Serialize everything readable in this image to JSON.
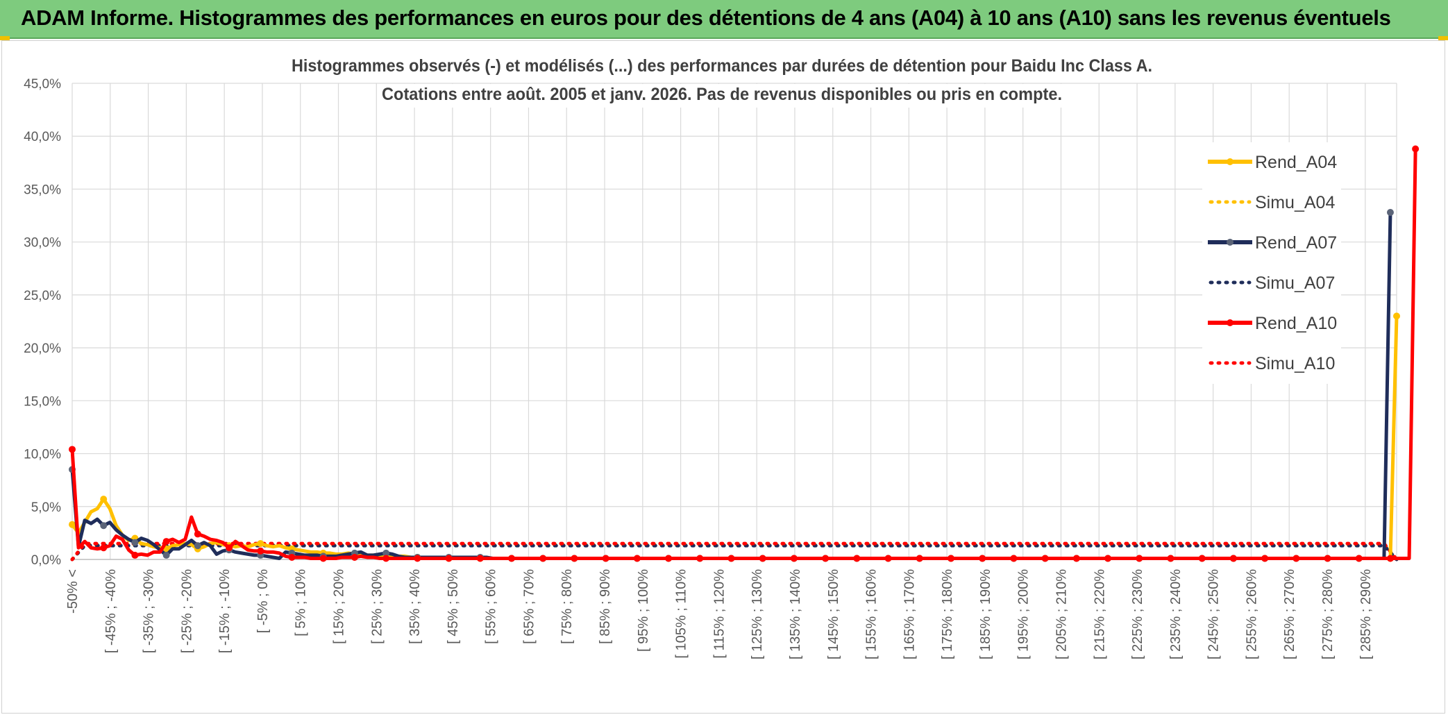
{
  "banner": {
    "title": "ADAM Informe. Histogrammes des performances en euros pour des détentions de 4 ans (A04) à 10 ans (A10) sans les revenus éventuels"
  },
  "colors": {
    "banner_bg": "#7ecb7e",
    "a04": "#ffc000",
    "a07": "#1f2d5a",
    "a07_marker": "#5b6478",
    "a10": "#ff0000",
    "grid": "#d9d9d9",
    "axis_text": "#595959",
    "title_text": "#404040"
  },
  "chart_data": {
    "type": "line",
    "title_line1": "Histogrammes observés (-) et modélisés (...) des performances par durées de détention pour Baidu Inc Class A.",
    "title_line2": "Cotations entre août. 2005 et janv. 2026. Pas de revenus disponibles ou pris en compte.",
    "ylim": [
      0,
      45
    ],
    "yticks": [
      "0,0%",
      "5,0%",
      "10,0%",
      "15,0%",
      "20,0%",
      "25,0%",
      "30,0%",
      "35,0%",
      "40,0%",
      "45,0%"
    ],
    "xtick_labels": [
      "-50% <",
      "[ -45% ; -40%",
      "[ -35% ; -30%",
      "[ -25% ; -20%",
      "[ -15% ; -10%",
      "[ -5% ; 0%",
      "[ 5% ; 10%",
      "[ 15% ; 20%",
      "[ 25% ; 30%",
      "[ 35% ; 40%",
      "[ 45% ; 50%",
      "[ 55% ; 60%",
      "[ 65% ; 70%",
      "[ 75% ; 80%",
      "[ 85% ; 90%",
      "[ 95% ; 100%",
      "[ 105% ; 110%",
      "[ 115% ; 120%",
      "[ 125% ; 130%",
      "[ 135% ; 140%",
      "[ 145% ; 150%",
      "[ 155% ; 160%",
      "[ 165% ; 170%",
      "[ 175% ; 180%",
      "[ 185% ; 190%",
      "[ 195% ; 200%",
      "[ 205% ; 210%",
      "[ 215% ; 220%",
      "[ 225% ; 230%",
      "[ 235% ; 240%",
      "[ 245% ; 250%",
      "[ 255% ; 260%",
      "[ 265% ; 270%",
      "[ 275% ; 280%",
      "[ 285% ; 290%"
    ],
    "legend_position": "right",
    "series": [
      {
        "name": "Rend_A04",
        "style": "solid",
        "color": "#ffc000",
        "values": [
          3.3,
          2.5,
          3.5,
          4.5,
          4.8,
          5.7,
          4.8,
          3.2,
          2.3,
          1.8,
          2.0,
          1.5,
          1.4,
          1.2,
          1.1,
          1.0,
          1.3,
          1.4,
          1.5,
          1.4,
          1.0,
          1.2,
          1.5,
          1.6,
          1.4,
          1.3,
          1.2,
          1.3,
          1.2,
          1.4,
          1.5,
          1.3,
          1.2,
          1.3,
          1.1,
          1.0,
          0.9,
          0.8,
          0.7,
          0.7,
          0.6,
          0.6,
          0.5,
          0.5,
          0.6,
          0.5,
          0.5,
          0.4,
          0.4,
          0.4,
          0.3,
          0.3,
          0.3,
          0.3,
          0.2,
          0.2,
          0.2,
          0.2,
          0.2,
          0.1,
          0.1,
          0.1,
          0.1,
          0.2,
          0.1,
          0.1,
          0.1,
          0.1,
          0.1,
          0.1,
          0.1,
          0.1,
          0.1,
          0.1,
          0.1,
          0.1,
          0.1,
          0.1,
          0.1,
          0.1,
          0.1,
          0.1,
          0.1,
          0.1,
          0.1,
          0.1,
          0.1,
          0.1,
          0.1,
          0.1,
          0.1,
          0.1,
          0.1,
          0.1,
          0.1,
          0.1,
          0.1,
          0.1,
          0.1,
          0.1,
          0.1,
          0.1,
          0.1,
          0.1,
          0.1,
          0.1,
          0.1,
          0.1,
          0.1,
          0.1,
          0.1,
          0.1,
          0.1,
          0.1,
          0.1,
          0.1,
          0.1,
          0.1,
          0.1,
          0.1,
          0.1,
          0.1,
          0.1,
          0.1,
          0.1,
          0.1,
          0.1,
          0.1,
          0.1,
          0.1,
          0.1,
          0.1,
          0.1,
          0.1,
          0.1,
          0.1,
          0.1,
          0.1,
          0.1,
          0.1,
          0.1,
          0.1,
          0.1,
          0.1,
          0.1,
          0.1,
          0.1,
          0.1,
          0.1,
          0.1,
          0.1,
          0.1,
          0.1,
          0.1,
          0.1,
          0.1,
          0.1,
          0.1,
          0.1,
          0.1,
          0.1,
          0.1,
          0.1,
          0.1,
          0.1,
          0.1,
          0.1,
          0.1,
          0.1,
          0.1,
          0.1,
          0.1,
          0.1,
          0.1,
          0.1,
          0.1,
          0.1,
          0.1,
          0.1,
          0.1,
          0.1,
          0.1,
          0.1,
          0.1,
          0.1,
          0.1,
          0.1,
          0.1,
          0.1,
          0.1,
          0.1,
          0.1,
          0.1,
          0.1,
          0.1,
          0.1,
          0.1,
          0.1,
          0.1,
          0.1,
          0.1,
          0.1,
          0.1,
          0.1,
          0.1,
          0.1,
          0.1,
          0.1,
          0.1,
          0.1,
          0.1,
          23.0
        ]
      },
      {
        "name": "Simu_A04",
        "style": "dotted",
        "color": "#ffc000",
        "value": 1.4
      },
      {
        "name": "Rend_A07",
        "style": "solid",
        "color": "#1f2d5a",
        "values": [
          8.5,
          1.2,
          3.7,
          3.4,
          3.8,
          3.2,
          3.5,
          2.8,
          2.3,
          1.9,
          1.6,
          2.0,
          1.8,
          1.4,
          0.9,
          0.4,
          1.0,
          1.0,
          1.4,
          1.8,
          1.3,
          1.6,
          1.3,
          0.5,
          0.8,
          0.9,
          0.7,
          0.6,
          0.5,
          0.4,
          0.4,
          0.3,
          0.2,
          0.1,
          0.7,
          0.6,
          0.5,
          0.4,
          0.4,
          0.4,
          0.3,
          0.3,
          0.3,
          0.4,
          0.5,
          0.6,
          0.7,
          0.4,
          0.4,
          0.5,
          0.6,
          0.5,
          0.3,
          0.2,
          0.2,
          0.2,
          0.2,
          0.2,
          0.2,
          0.2,
          0.2,
          0.2,
          0.2,
          0.2,
          0.2,
          0.2,
          0.2,
          0.1,
          0.1,
          0.1,
          0.1,
          0.1,
          0.1,
          0.1,
          0.1,
          0.1,
          0.1,
          0.1,
          0.1,
          0.1,
          0.1,
          0.1,
          0.1,
          0.1,
          0.1,
          0.1,
          0.1,
          0.1,
          0.1,
          0.1,
          0.1,
          0.1,
          0.1,
          0.1,
          0.1,
          0.1,
          0.1,
          0.1,
          0.1,
          0.1,
          0.1,
          0.1,
          0.1,
          0.1,
          0.1,
          0.1,
          0.1,
          0.1,
          0.1,
          0.1,
          0.1,
          0.1,
          0.1,
          0.1,
          0.1,
          0.1,
          0.1,
          0.1,
          0.1,
          0.1,
          0.1,
          0.1,
          0.1,
          0.1,
          0.1,
          0.1,
          0.1,
          0.1,
          0.1,
          0.1,
          0.1,
          0.1,
          0.1,
          0.1,
          0.1,
          0.1,
          0.1,
          0.1,
          0.1,
          0.1,
          0.1,
          0.1,
          0.1,
          0.1,
          0.1,
          0.1,
          0.1,
          0.1,
          0.1,
          0.1,
          0.1,
          0.1,
          0.1,
          0.1,
          0.1,
          0.1,
          0.1,
          0.1,
          0.1,
          0.1,
          0.1,
          0.1,
          0.1,
          0.1,
          0.1,
          0.1,
          0.1,
          0.1,
          0.1,
          0.1,
          0.1,
          0.1,
          0.1,
          0.1,
          0.1,
          0.1,
          0.1,
          0.1,
          0.1,
          0.1,
          0.1,
          0.1,
          0.1,
          0.1,
          0.1,
          0.1,
          0.1,
          0.1,
          0.1,
          0.1,
          0.1,
          0.1,
          0.1,
          0.1,
          0.1,
          0.1,
          0.1,
          0.1,
          0.1,
          0.1,
          0.1,
          0.1,
          0.1,
          0.1,
          0.1,
          0.1,
          0.1,
          0.1,
          0.1,
          0.1,
          32.8
        ]
      },
      {
        "name": "Simu_A07",
        "style": "dotted",
        "color": "#1f2d5a",
        "value": 1.3
      },
      {
        "name": "Rend_A10",
        "style": "solid",
        "color": "#ff0000",
        "values": [
          10.4,
          1.1,
          1.7,
          1.1,
          1.0,
          1.1,
          1.3,
          2.2,
          1.9,
          0.9,
          0.4,
          0.5,
          0.4,
          0.7,
          0.7,
          1.7,
          1.9,
          1.6,
          1.9,
          4.0,
          2.4,
          2.2,
          1.9,
          1.8,
          1.6,
          1.1,
          1.7,
          1.3,
          0.9,
          0.8,
          0.8,
          0.7,
          0.7,
          0.6,
          0.3,
          0.2,
          0.2,
          0.2,
          0.1,
          0.1,
          0.1,
          0.1,
          0.1,
          0.2,
          0.2,
          0.2,
          0.3,
          0.2,
          0.2,
          0.1,
          0.1,
          0.1,
          0.1,
          0.1,
          0.1,
          0.1,
          0.1,
          0.1,
          0.1,
          0.1,
          0.1,
          0.1,
          0.1,
          0.1,
          0.1,
          0.1,
          0.1,
          0.1,
          0.1,
          0.1,
          0.1,
          0.1,
          0.1,
          0.1,
          0.1,
          0.1,
          0.1,
          0.1,
          0.1,
          0.1,
          0.1,
          0.1,
          0.1,
          0.1,
          0.1,
          0.1,
          0.1,
          0.1,
          0.1,
          0.1,
          0.1,
          0.1,
          0.1,
          0.1,
          0.1,
          0.1,
          0.1,
          0.1,
          0.1,
          0.1,
          0.1,
          0.1,
          0.1,
          0.1,
          0.1,
          0.1,
          0.1,
          0.1,
          0.1,
          0.1,
          0.1,
          0.1,
          0.1,
          0.1,
          0.1,
          0.1,
          0.1,
          0.1,
          0.1,
          0.1,
          0.1,
          0.1,
          0.1,
          0.1,
          0.1,
          0.1,
          0.1,
          0.1,
          0.1,
          0.1,
          0.1,
          0.1,
          0.1,
          0.1,
          0.1,
          0.1,
          0.1,
          0.1,
          0.1,
          0.1,
          0.1,
          0.1,
          0.1,
          0.1,
          0.1,
          0.1,
          0.1,
          0.1,
          0.1,
          0.1,
          0.1,
          0.1,
          0.1,
          0.1,
          0.1,
          0.1,
          0.1,
          0.1,
          0.1,
          0.1,
          0.1,
          0.1,
          0.1,
          0.1,
          0.1,
          0.1,
          0.1,
          0.1,
          0.1,
          0.1,
          0.1,
          0.1,
          0.1,
          0.1,
          0.1,
          0.1,
          0.1,
          0.1,
          0.1,
          0.1,
          0.1,
          0.1,
          0.1,
          0.1,
          0.1,
          0.1,
          0.1,
          0.1,
          0.1,
          0.1,
          0.1,
          0.1,
          0.1,
          0.1,
          0.1,
          0.1,
          0.1,
          0.1,
          0.1,
          0.1,
          0.1,
          0.1,
          0.1,
          0.1,
          0.1,
          0.1,
          0.1,
          0.1,
          0.1,
          0.1,
          0.1,
          0.1,
          0.1,
          0.1,
          38.8
        ]
      },
      {
        "name": "Simu_A10",
        "style": "dotted",
        "color": "#ff0000",
        "value": 1.5
      }
    ]
  }
}
